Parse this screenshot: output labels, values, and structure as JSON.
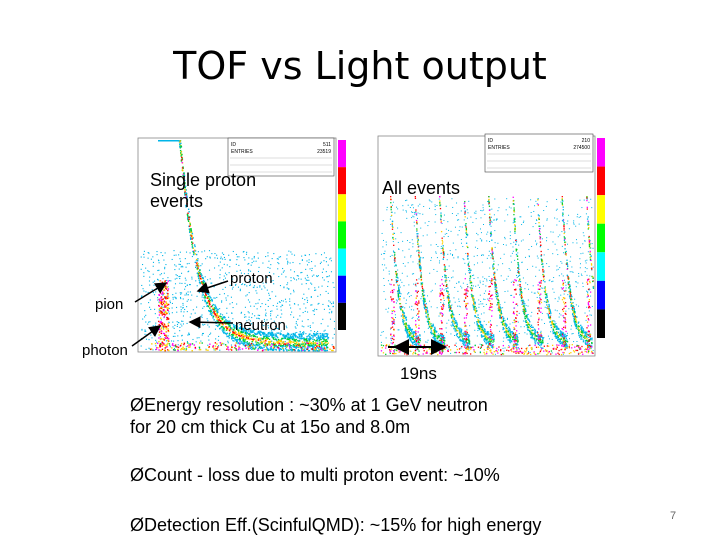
{
  "title": "TOF vs Light output",
  "left_plot": {
    "label_line1": "Single proton",
    "label_line2": "events",
    "stats": {
      "id_label": "ID",
      "id_value": "511",
      "entries_label": "ENTRIES",
      "entries_value": "23519"
    }
  },
  "right_plot": {
    "label": "All events",
    "stats": {
      "id_label": "ID",
      "id_value": "210",
      "entries_label": "ENTRIES",
      "entries_value": "274500"
    }
  },
  "annotations": {
    "proton": "proton",
    "pion": "pion",
    "neutron": "neutron",
    "photon": "photon",
    "spacing": "19ns"
  },
  "bullets": [
    {
      "line1": "ØEnergy resolution : ~30% at 1 GeV neutron",
      "line2": "for 20 cm thick Cu at 15o and 8.0m"
    },
    {
      "line1": "ØCount - loss due to multi proton event:  ~10%"
    },
    {
      "line1": "ØDetection Eff.(ScinfulQMD): ~15% for high energy"
    }
  ],
  "page_number": "7",
  "colors": {
    "scale": [
      "#ff00ff",
      "#ff0000",
      "#ffff00",
      "#00ff00",
      "#00ffff",
      "#0000ff",
      "#000000"
    ]
  }
}
